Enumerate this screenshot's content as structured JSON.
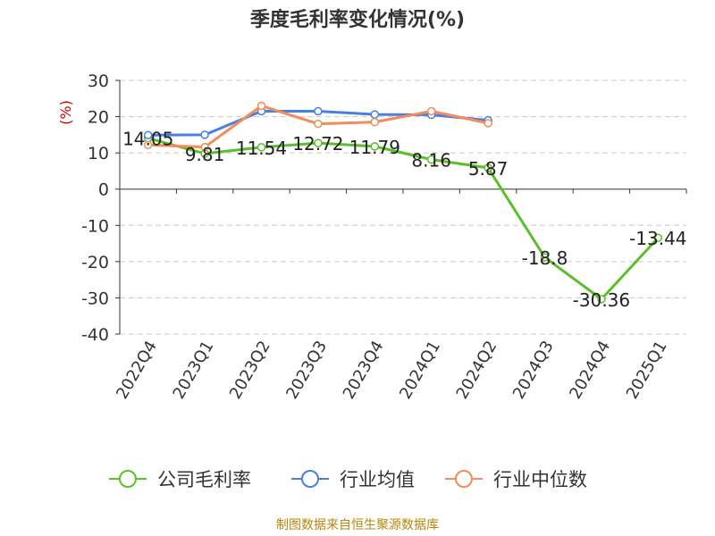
{
  "title": "季度毛利率变化情况(%)",
  "source": "制图数据来自恒生聚源数据库",
  "colors": {
    "company": "#5cbf2a",
    "industry_avg": "#4a7fe0",
    "industry_median": "#f28c5a",
    "axis_unit": "#cc0000"
  },
  "chart_data": {
    "type": "line",
    "title": "季度毛利率变化情况(%)",
    "ylabel": "(%)",
    "ylim": [
      -40,
      30
    ],
    "yticks": [
      30,
      20,
      10,
      0,
      -10,
      -20,
      -30,
      -40
    ],
    "grid": true,
    "legend_position": "bottom",
    "categories": [
      "2022Q4",
      "2023Q1",
      "2023Q2",
      "2023Q3",
      "2023Q4",
      "2024Q1",
      "2024Q2",
      "2024Q3",
      "2024Q4",
      "2025Q1"
    ],
    "series": [
      {
        "name": "公司毛利率",
        "color": "#5cbf2a",
        "values": [
          14.05,
          9.81,
          11.54,
          12.72,
          11.79,
          8.16,
          5.87,
          -18.8,
          -30.36,
          -13.44
        ],
        "labels": [
          "14.05",
          "9.81",
          "11.54",
          "12.72",
          "11.79",
          "8.16",
          "5.87",
          "-18.8",
          "-30.36",
          "-13.44"
        ]
      },
      {
        "name": "行业均值",
        "color": "#4a7fe0",
        "values": [
          14.9,
          15.0,
          21.5,
          21.5,
          20.6,
          20.5,
          19.0,
          null,
          null,
          null
        ]
      },
      {
        "name": "行业中位数",
        "color": "#f28c5a",
        "values": [
          12.2,
          11.6,
          23.0,
          18.0,
          18.5,
          21.5,
          18.2,
          null,
          null,
          null
        ]
      }
    ]
  }
}
